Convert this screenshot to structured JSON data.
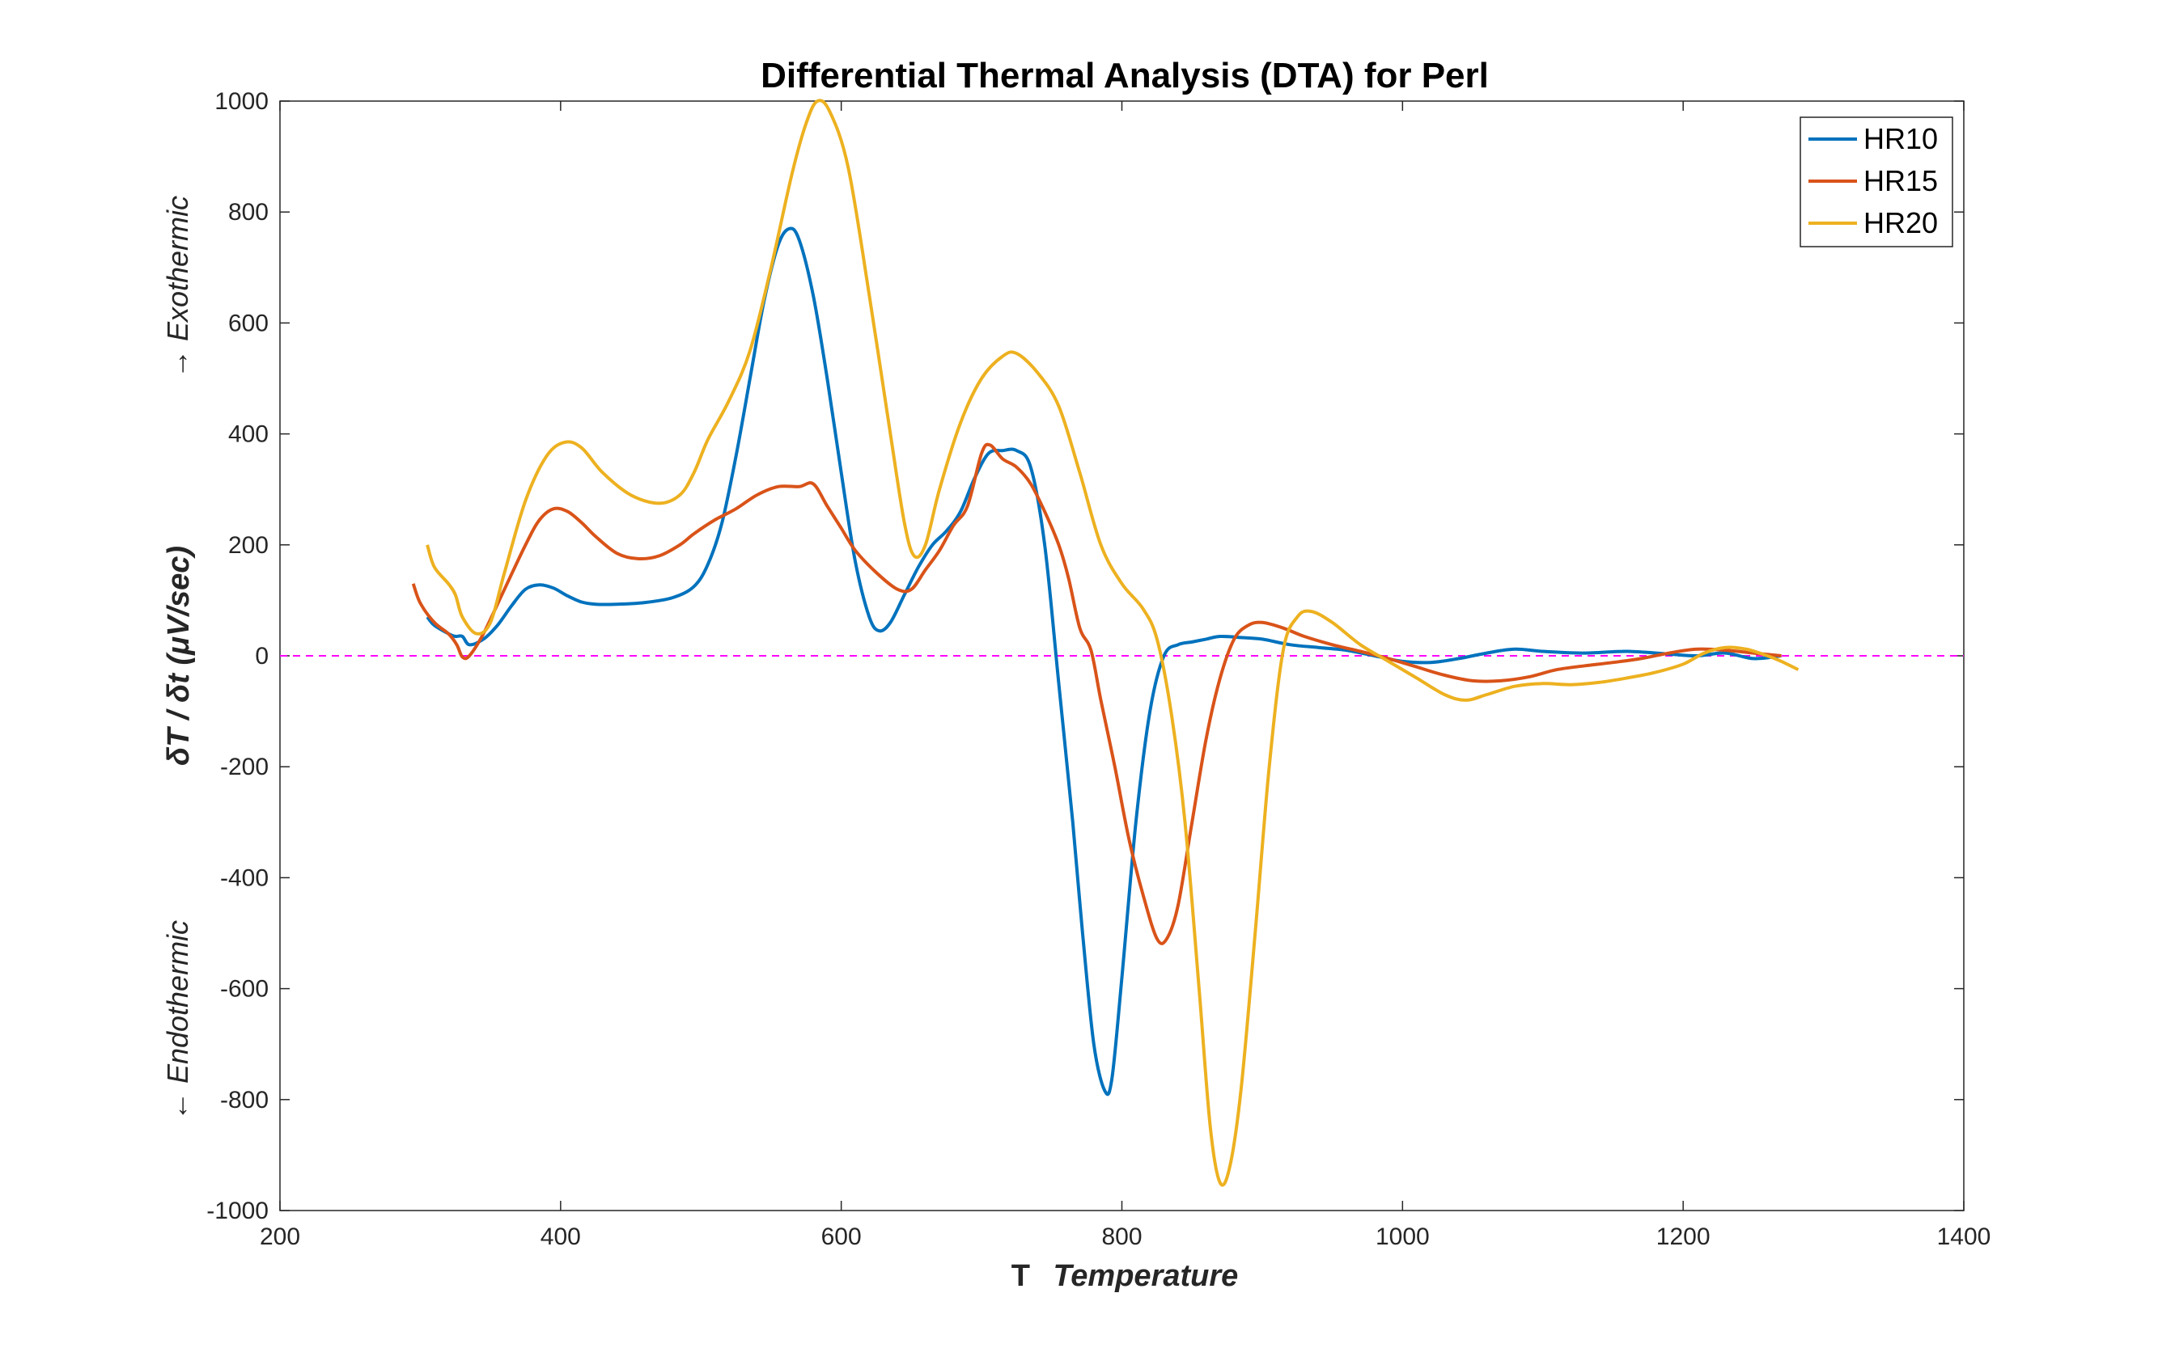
{
  "colors": {
    "hr10": "#0072BD",
    "hr15": "#D95319",
    "hr20": "#EDB120",
    "zero_line": "#FF00FF",
    "axes": "#262626"
  },
  "chart_data": {
    "type": "line",
    "title": "Differential Thermal Analysis (DTA) for Perl",
    "xlabel_prefix": "T",
    "xlabel": "Temperature",
    "ylabel": "δT / δt (μV/sec)",
    "annotation_top": "→ Exothermic",
    "annotation_bottom": "← Endothermic",
    "xlim": [
      200,
      1400
    ],
    "ylim": [
      -1000,
      1000
    ],
    "x_ticks": [
      "200",
      "400",
      "600",
      "800",
      "1000",
      "1200",
      "1400"
    ],
    "y_ticks": [
      "1000",
      "800",
      "600",
      "400",
      "200",
      "0",
      "-200",
      "-400",
      "-600",
      "-800",
      "-1000"
    ],
    "legend_position": "top-right",
    "reference_line": {
      "y": 0,
      "style": "dashed"
    },
    "series": [
      {
        "name": "HR10",
        "color": "#0072BD",
        "points": [
          [
            305,
            70
          ],
          [
            310,
            55
          ],
          [
            320,
            40
          ],
          [
            325,
            35
          ],
          [
            330,
            35
          ],
          [
            335,
            20
          ],
          [
            345,
            30
          ],
          [
            355,
            55
          ],
          [
            365,
            90
          ],
          [
            375,
            120
          ],
          [
            385,
            128
          ],
          [
            395,
            122
          ],
          [
            405,
            108
          ],
          [
            415,
            97
          ],
          [
            425,
            93
          ],
          [
            440,
            93
          ],
          [
            460,
            96
          ],
          [
            480,
            105
          ],
          [
            495,
            125
          ],
          [
            505,
            165
          ],
          [
            515,
            240
          ],
          [
            525,
            360
          ],
          [
            535,
            500
          ],
          [
            545,
            640
          ],
          [
            555,
            740
          ],
          [
            563,
            770
          ],
          [
            570,
            750
          ],
          [
            580,
            650
          ],
          [
            590,
            500
          ],
          [
            600,
            330
          ],
          [
            610,
            170
          ],
          [
            620,
            70
          ],
          [
            627,
            45
          ],
          [
            635,
            60
          ],
          [
            645,
            110
          ],
          [
            655,
            160
          ],
          [
            665,
            200
          ],
          [
            675,
            225
          ],
          [
            685,
            260
          ],
          [
            695,
            320
          ],
          [
            705,
            365
          ],
          [
            715,
            370
          ],
          [
            725,
            370
          ],
          [
            735,
            340
          ],
          [
            745,
            200
          ],
          [
            755,
            -50
          ],
          [
            765,
            -300
          ],
          [
            772,
            -500
          ],
          [
            780,
            -700
          ],
          [
            788,
            -785
          ],
          [
            793,
            -760
          ],
          [
            800,
            -580
          ],
          [
            810,
            -300
          ],
          [
            820,
            -100
          ],
          [
            830,
            0
          ],
          [
            840,
            20
          ],
          [
            850,
            25
          ],
          [
            860,
            30
          ],
          [
            870,
            35
          ],
          [
            885,
            33
          ],
          [
            900,
            30
          ],
          [
            920,
            20
          ],
          [
            940,
            15
          ],
          [
            960,
            10
          ],
          [
            980,
            0
          ],
          [
            1000,
            -10
          ],
          [
            1020,
            -12
          ],
          [
            1040,
            -5
          ],
          [
            1060,
            5
          ],
          [
            1080,
            12
          ],
          [
            1100,
            8
          ],
          [
            1130,
            5
          ],
          [
            1160,
            8
          ],
          [
            1190,
            3
          ],
          [
            1210,
            0
          ],
          [
            1230,
            5
          ],
          [
            1250,
            -5
          ],
          [
            1270,
            0
          ]
        ]
      },
      {
        "name": "HR15",
        "color": "#D95319",
        "points": [
          [
            295,
            130
          ],
          [
            300,
            95
          ],
          [
            310,
            60
          ],
          [
            320,
            40
          ],
          [
            326,
            20
          ],
          [
            330,
            -2
          ],
          [
            335,
            0
          ],
          [
            345,
            40
          ],
          [
            360,
            120
          ],
          [
            375,
            200
          ],
          [
            385,
            245
          ],
          [
            395,
            265
          ],
          [
            405,
            260
          ],
          [
            415,
            240
          ],
          [
            425,
            215
          ],
          [
            440,
            185
          ],
          [
            455,
            175
          ],
          [
            470,
            180
          ],
          [
            485,
            200
          ],
          [
            495,
            220
          ],
          [
            510,
            245
          ],
          [
            525,
            265
          ],
          [
            540,
            290
          ],
          [
            555,
            305
          ],
          [
            570,
            305
          ],
          [
            580,
            310
          ],
          [
            590,
            270
          ],
          [
            600,
            230
          ],
          [
            610,
            190
          ],
          [
            625,
            150
          ],
          [
            640,
            120
          ],
          [
            650,
            120
          ],
          [
            660,
            155
          ],
          [
            670,
            190
          ],
          [
            680,
            235
          ],
          [
            690,
            270
          ],
          [
            700,
            365
          ],
          [
            706,
            380
          ],
          [
            715,
            355
          ],
          [
            725,
            340
          ],
          [
            735,
            310
          ],
          [
            745,
            260
          ],
          [
            755,
            200
          ],
          [
            762,
            140
          ],
          [
            770,
            50
          ],
          [
            778,
            10
          ],
          [
            785,
            -80
          ],
          [
            795,
            -200
          ],
          [
            805,
            -330
          ],
          [
            815,
            -430
          ],
          [
            825,
            -510
          ],
          [
            832,
            -510
          ],
          [
            840,
            -450
          ],
          [
            850,
            -300
          ],
          [
            860,
            -150
          ],
          [
            870,
            -40
          ],
          [
            880,
            30
          ],
          [
            890,
            55
          ],
          [
            900,
            60
          ],
          [
            915,
            50
          ],
          [
            930,
            35
          ],
          [
            950,
            20
          ],
          [
            970,
            8
          ],
          [
            990,
            -5
          ],
          [
            1010,
            -20
          ],
          [
            1030,
            -35
          ],
          [
            1050,
            -45
          ],
          [
            1070,
            -45
          ],
          [
            1090,
            -38
          ],
          [
            1110,
            -25
          ],
          [
            1130,
            -18
          ],
          [
            1150,
            -12
          ],
          [
            1170,
            -5
          ],
          [
            1190,
            5
          ],
          [
            1210,
            12
          ],
          [
            1230,
            10
          ],
          [
            1250,
            5
          ],
          [
            1270,
            0
          ]
        ]
      },
      {
        "name": "HR20",
        "color": "#EDB120",
        "points": [
          [
            305,
            200
          ],
          [
            310,
            160
          ],
          [
            320,
            130
          ],
          [
            325,
            110
          ],
          [
            330,
            70
          ],
          [
            340,
            40
          ],
          [
            350,
            60
          ],
          [
            360,
            150
          ],
          [
            375,
            280
          ],
          [
            390,
            360
          ],
          [
            403,
            385
          ],
          [
            415,
            375
          ],
          [
            430,
            330
          ],
          [
            450,
            290
          ],
          [
            470,
            275
          ],
          [
            485,
            290
          ],
          [
            495,
            330
          ],
          [
            505,
            390
          ],
          [
            520,
            460
          ],
          [
            535,
            550
          ],
          [
            550,
            700
          ],
          [
            565,
            870
          ],
          [
            575,
            960
          ],
          [
            583,
            1000
          ],
          [
            592,
            980
          ],
          [
            605,
            880
          ],
          [
            620,
            650
          ],
          [
            635,
            400
          ],
          [
            645,
            240
          ],
          [
            652,
            180
          ],
          [
            660,
            200
          ],
          [
            670,
            300
          ],
          [
            685,
            420
          ],
          [
            700,
            500
          ],
          [
            715,
            540
          ],
          [
            725,
            545
          ],
          [
            740,
            510
          ],
          [
            755,
            450
          ],
          [
            770,
            330
          ],
          [
            785,
            200
          ],
          [
            800,
            130
          ],
          [
            815,
            85
          ],
          [
            825,
            30
          ],
          [
            835,
            -100
          ],
          [
            845,
            -300
          ],
          [
            855,
            -600
          ],
          [
            863,
            -850
          ],
          [
            870,
            -950
          ],
          [
            877,
            -920
          ],
          [
            885,
            -780
          ],
          [
            895,
            -500
          ],
          [
            905,
            -200
          ],
          [
            915,
            10
          ],
          [
            925,
            70
          ],
          [
            935,
            80
          ],
          [
            950,
            60
          ],
          [
            970,
            20
          ],
          [
            990,
            -10
          ],
          [
            1010,
            -40
          ],
          [
            1030,
            -70
          ],
          [
            1045,
            -80
          ],
          [
            1060,
            -70
          ],
          [
            1080,
            -55
          ],
          [
            1100,
            -50
          ],
          [
            1120,
            -52
          ],
          [
            1140,
            -48
          ],
          [
            1160,
            -40
          ],
          [
            1180,
            -30
          ],
          [
            1200,
            -15
          ],
          [
            1215,
            5
          ],
          [
            1230,
            15
          ],
          [
            1245,
            12
          ],
          [
            1260,
            0
          ],
          [
            1270,
            -10
          ],
          [
            1282,
            -25
          ]
        ]
      }
    ]
  }
}
